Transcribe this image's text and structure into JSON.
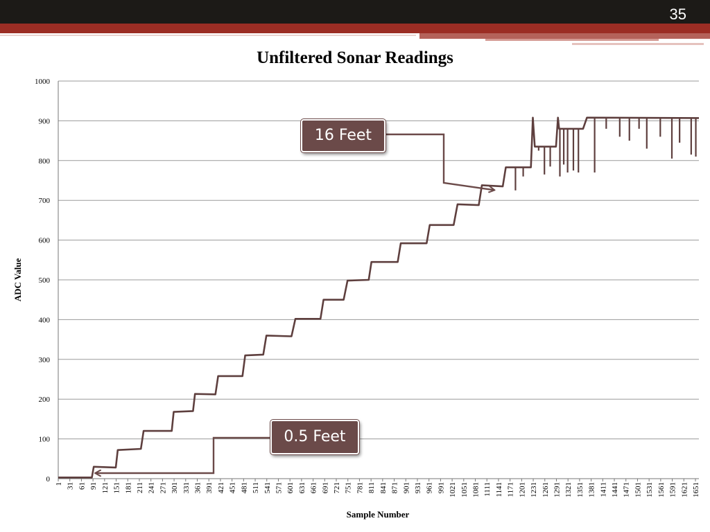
{
  "slide": {
    "number": "35"
  },
  "colors": {
    "series": "#5e3f3e",
    "grid": "#9a9a9a",
    "callout": "#6b4a49",
    "topbar": "#1c1a17",
    "accent": "#9b2d24"
  },
  "callouts": {
    "feet16": "16 Feet",
    "feet05": "0.5 Feet"
  },
  "chart_data": {
    "type": "line",
    "title": "Unfiltered Sonar Readings",
    "xlabel": "Sample Number",
    "ylabel": "ADC Value",
    "ylim": [
      0,
      1000
    ],
    "xlim": [
      1,
      1660
    ],
    "y_ticks": [
      0,
      100,
      200,
      300,
      400,
      500,
      600,
      700,
      800,
      900,
      1000
    ],
    "x_tick_labels": [
      "1",
      "31",
      "61",
      "91",
      "121",
      "151",
      "181",
      "211",
      "241",
      "271",
      "301",
      "331",
      "361",
      "391",
      "421",
      "451",
      "481",
      "511",
      "541",
      "571",
      "601",
      "631",
      "661",
      "691",
      "721",
      "751",
      "781",
      "811",
      "841",
      "871",
      "901",
      "931",
      "961",
      "991",
      "1021",
      "1051",
      "1081",
      "1111",
      "1141",
      "1171",
      "1201",
      "1231",
      "1261",
      "1291",
      "1321",
      "1351",
      "1381",
      "1411",
      "1441",
      "1471",
      "1501",
      "1531",
      "1561",
      "1591",
      "1621",
      "1651"
    ],
    "grid": true,
    "legend": "none",
    "series": [
      {
        "points": [
          [
            1,
            3
          ],
          [
            88,
            3
          ],
          [
            93,
            30
          ],
          [
            150,
            28
          ],
          [
            155,
            72
          ],
          [
            215,
            75
          ],
          [
            222,
            120
          ],
          [
            295,
            120
          ],
          [
            300,
            168
          ],
          [
            350,
            170
          ],
          [
            355,
            213
          ],
          [
            408,
            212
          ],
          [
            415,
            258
          ],
          [
            478,
            258
          ],
          [
            485,
            310
          ],
          [
            532,
            312
          ],
          [
            540,
            360
          ],
          [
            605,
            358
          ],
          [
            615,
            402
          ],
          [
            680,
            402
          ],
          [
            688,
            450
          ],
          [
            740,
            450
          ],
          [
            750,
            498
          ],
          [
            805,
            500
          ],
          [
            812,
            545
          ],
          [
            880,
            545
          ],
          [
            888,
            592
          ],
          [
            955,
            592
          ],
          [
            963,
            638
          ],
          [
            1025,
            638
          ],
          [
            1035,
            690
          ],
          [
            1090,
            688
          ],
          [
            1098,
            738
          ],
          [
            1152,
            735
          ],
          [
            1160,
            783
          ],
          [
            1225,
            783
          ],
          [
            1230,
            908
          ],
          [
            1235,
            835
          ],
          [
            1290,
            835
          ],
          [
            1295,
            908
          ],
          [
            1298,
            880
          ],
          [
            1360,
            880
          ],
          [
            1370,
            908
          ],
          [
            1660,
            907
          ]
        ]
      }
    ],
    "spikes": [
      [
        1185,
        725
      ],
      [
        1205,
        760
      ],
      [
        1245,
        825
      ],
      [
        1260,
        765
      ],
      [
        1275,
        785
      ],
      [
        1300,
        760
      ],
      [
        1310,
        790
      ],
      [
        1320,
        770
      ],
      [
        1335,
        775
      ],
      [
        1348,
        770
      ],
      [
        1390,
        770
      ],
      [
        1420,
        880
      ],
      [
        1455,
        860
      ],
      [
        1480,
        850
      ],
      [
        1505,
        880
      ],
      [
        1525,
        830
      ],
      [
        1560,
        860
      ],
      [
        1590,
        805
      ],
      [
        1610,
        845
      ],
      [
        1640,
        815
      ],
      [
        1652,
        810
      ]
    ],
    "annotations": [
      {
        "text": "16 Feet",
        "x": 1140,
        "y": 745
      },
      {
        "text": "0.5 Feet",
        "x": 91,
        "y": 15
      }
    ]
  }
}
